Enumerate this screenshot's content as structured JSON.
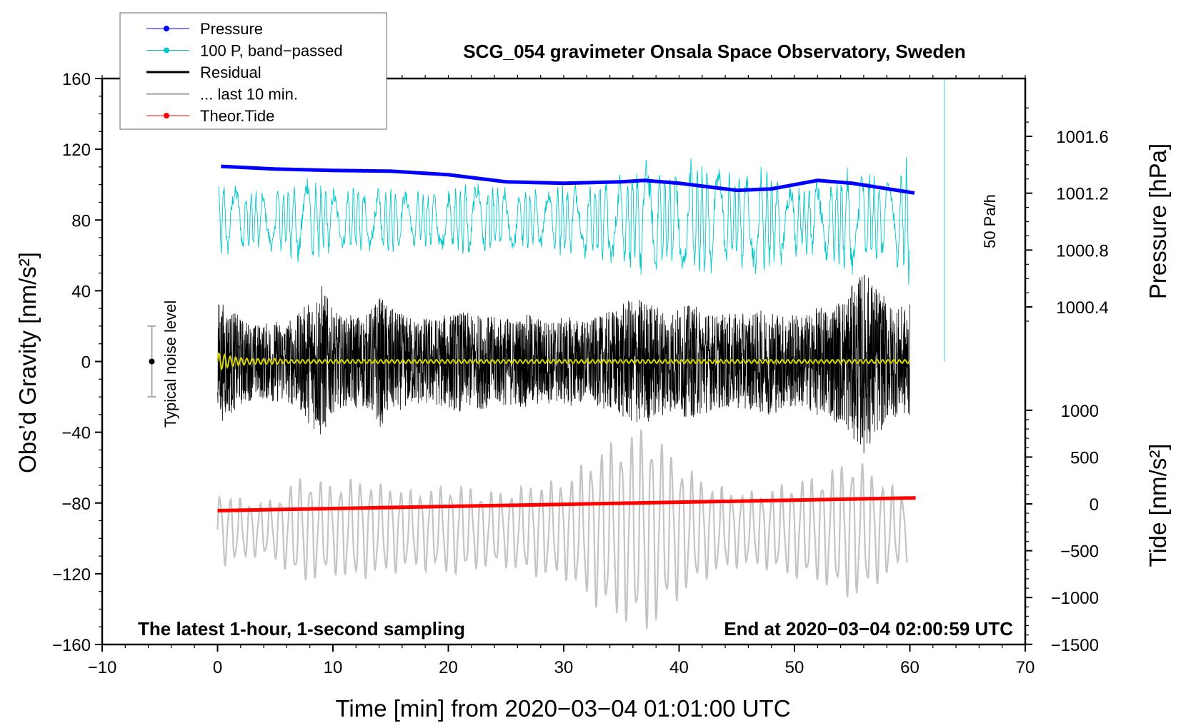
{
  "chart_data": {
    "type": "line",
    "title": "SCG_054 gravimeter Onsala Space Observatory, Sweden",
    "xlabel": "Time [min] from 2020−03−04 01:01:00 UTC",
    "ylabel": "Obs’d Gravity [nm/s²]",
    "ylabel_right_top": "Pressure [hPa]",
    "ylabel_right_bottom": "Tide [nm/s²]",
    "annotation_left": "The latest 1-hour, 1-second sampling",
    "annotation_right": "End at 2020−03−04 02:00:59 UTC",
    "noise_label": "Typical noise level",
    "rate_label": "50 Pa/h",
    "xlim": [
      -10,
      70
    ],
    "ylim": [
      -160,
      160
    ],
    "pressure_lim": [
      1000.4,
      1001.6
    ],
    "tide_lim": [
      -1500,
      1000
    ],
    "x_ticks": [
      "−10",
      "0",
      "10",
      "20",
      "30",
      "40",
      "50",
      "60",
      "70"
    ],
    "x_tick_values": [
      -10,
      0,
      10,
      20,
      30,
      40,
      50,
      60,
      70
    ],
    "y_ticks": [
      "160",
      "120",
      "80",
      "40",
      "0",
      "−40",
      "−80",
      "−120",
      "−160"
    ],
    "y_tick_values": [
      160,
      120,
      80,
      40,
      0,
      -40,
      -80,
      -120,
      -160
    ],
    "pressure_ticks": [
      "1001.6",
      "1001.2",
      "1000.8",
      "1000.4"
    ],
    "pressure_tick_values": [
      1001.6,
      1001.2,
      1000.8,
      1000.4
    ],
    "tide_ticks": [
      "1000",
      "500",
      "0",
      "−500",
      "−1000",
      "−1500"
    ],
    "tide_tick_values": [
      1000,
      500,
      0,
      -500,
      -1000,
      -1500
    ],
    "legend": {
      "placement": "top-left",
      "entries": [
        {
          "label": "Pressure",
          "color": "#0000ff",
          "marker": true
        },
        {
          "label": "100 P, band−passed",
          "color": "#00c8c8",
          "marker": true
        },
        {
          "label": "Residual",
          "color": "#000000",
          "marker": false
        },
        {
          "label": "... last 10 min.",
          "color": "#bebebe",
          "marker": false
        },
        {
          "label": "Theor.Tide",
          "color": "#ff0000",
          "marker": true
        }
      ]
    },
    "series": [
      {
        "name": "Pressure",
        "axis": "pressure",
        "x": [
          0,
          5,
          10,
          15,
          20,
          25,
          30,
          35,
          37,
          40,
          45,
          48,
          52,
          55,
          60.5
        ],
        "y": [
          1001.39,
          1001.37,
          1001.36,
          1001.355,
          1001.33,
          1001.28,
          1001.27,
          1001.28,
          1001.29,
          1001.27,
          1001.22,
          1001.23,
          1001.29,
          1001.27,
          1001.2
        ]
      },
      {
        "name": "100 P, band-passed",
        "axis": "gravity",
        "baseline": 80,
        "x_range": [
          0,
          60
        ],
        "amplitude_per_minute": [
          22,
          20,
          18,
          16,
          16,
          18,
          20,
          24,
          26,
          20,
          18,
          16,
          20,
          18,
          18,
          18,
          16,
          16,
          16,
          16,
          18,
          20,
          22,
          20,
          18,
          18,
          16,
          16,
          18,
          18,
          20,
          20,
          22,
          24,
          26,
          26,
          30,
          34,
          30,
          26,
          30,
          36,
          30,
          30,
          28,
          26,
          28,
          30,
          28,
          24,
          20,
          20,
          22,
          24,
          26,
          30,
          28,
          24,
          22,
          26,
          38
        ]
      },
      {
        "name": "Residual",
        "axis": "gravity",
        "baseline": 0,
        "x_range": [
          0,
          60
        ],
        "amplitude_per_minute": [
          40,
          34,
          28,
          24,
          24,
          26,
          26,
          30,
          40,
          50,
          32,
          28,
          30,
          30,
          42,
          34,
          30,
          28,
          28,
          28,
          30,
          32,
          30,
          30,
          28,
          28,
          28,
          30,
          28,
          26,
          28,
          28,
          26,
          28,
          32,
          36,
          40,
          40,
          36,
          32,
          34,
          36,
          34,
          30,
          30,
          30,
          30,
          32,
          34,
          30,
          30,
          30,
          34,
          36,
          40,
          48,
          58,
          50,
          38,
          34,
          36
        ]
      },
      {
        "name": "... last 10 min.",
        "axis": "gravity",
        "baseline": -95,
        "x_range": [
          0,
          60
        ],
        "amplitude_per_minute": [
          22,
          20,
          18,
          16,
          16,
          18,
          24,
          30,
          30,
          28,
          26,
          28,
          30,
          28,
          26,
          26,
          24,
          22,
          24,
          24,
          26,
          26,
          24,
          22,
          22,
          22,
          24,
          26,
          28,
          28,
          28,
          34,
          40,
          46,
          50,
          52,
          56,
          60,
          54,
          46,
          40,
          34,
          30,
          26,
          24,
          22,
          22,
          22,
          24,
          26,
          28,
          30,
          30,
          34,
          38,
          40,
          38,
          32,
          28,
          22,
          18
        ]
      },
      {
        "name": "Yellow filtered residual",
        "axis": "gravity",
        "baseline": 0,
        "x_range": [
          0,
          60
        ],
        "amplitude_per_minute": [
          5,
          3,
          2,
          1.5,
          1.5,
          1.5,
          1,
          1,
          1,
          1,
          1,
          1,
          1,
          1,
          1,
          1,
          1,
          1,
          1,
          1,
          1,
          1,
          1,
          1,
          1,
          1,
          1,
          1,
          1,
          1,
          1,
          1,
          1,
          1,
          1,
          1,
          1,
          1,
          1,
          1,
          1,
          1,
          1,
          1,
          1,
          1,
          1,
          1,
          1,
          1,
          1,
          1,
          1,
          1,
          1,
          1,
          1,
          1,
          1,
          1,
          1
        ]
      },
      {
        "name": "Theor.Tide",
        "axis": "tide",
        "x": [
          0,
          60.5
        ],
        "y": [
          -72,
          64
        ]
      }
    ],
    "noise_bar": {
      "x": -5.7,
      "center": 0,
      "half_range": 20
    },
    "rate_bar": {
      "x": 63,
      "from": 0,
      "to": 160
    }
  }
}
